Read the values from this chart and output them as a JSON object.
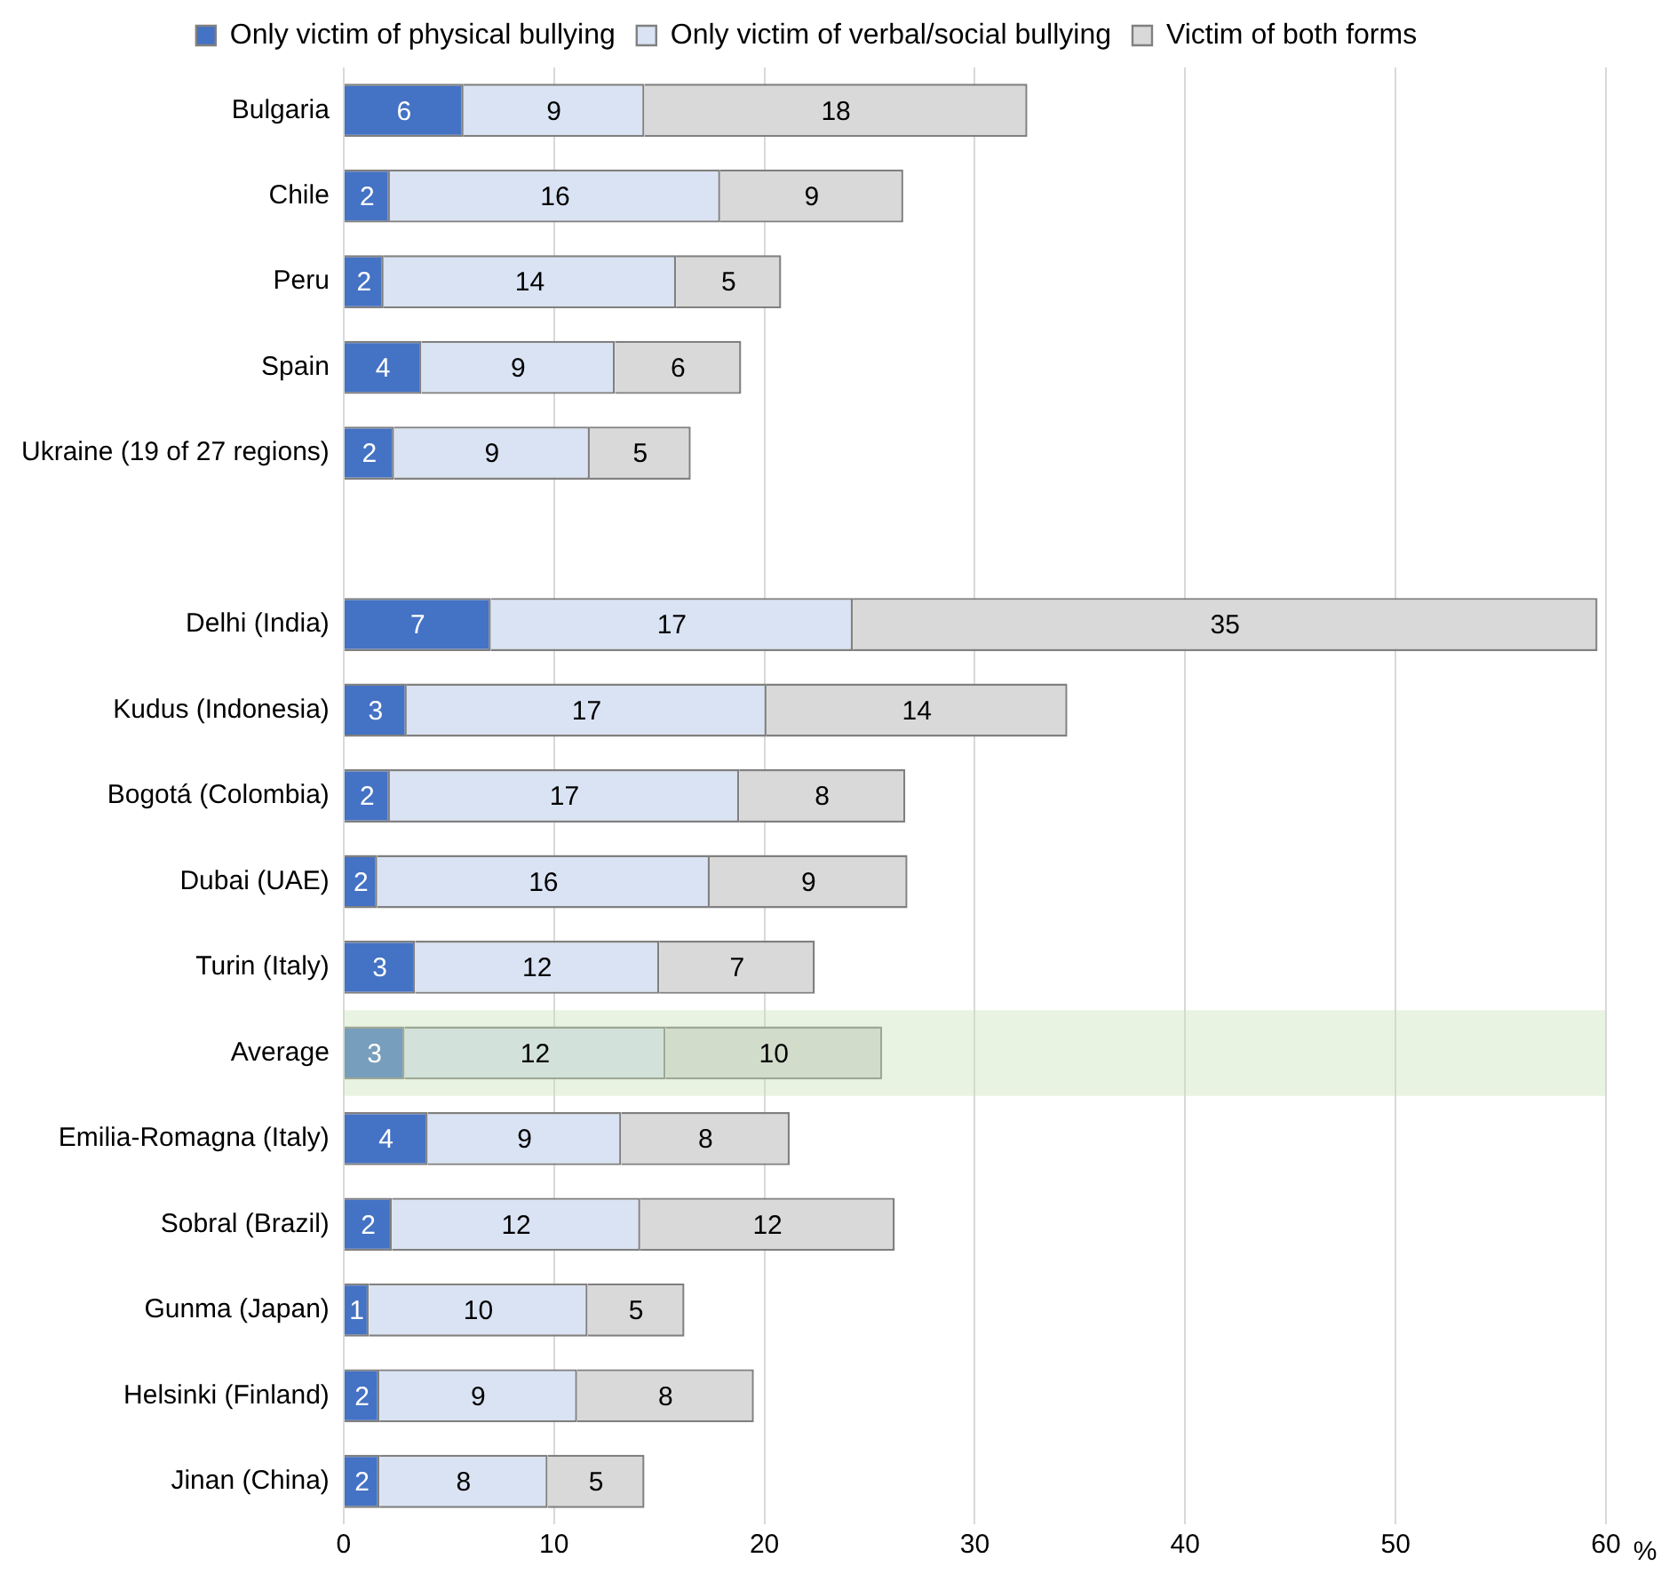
{
  "chart_data": {
    "type": "bar",
    "orientation": "horizontal",
    "stacked": true,
    "xlabel": "%",
    "categories": [
      "Bulgaria",
      "Chile",
      "Peru",
      "Spain",
      "Ukraine (19 of 27 regions)",
      null,
      "Delhi (India)",
      "Kudus (Indonesia)",
      "Bogotá (Colombia)",
      "Dubai (UAE)",
      "Turin (Italy)",
      "Average",
      "Emilia-Romagna (Italy)",
      "Sobral (Brazil)",
      "Gunma (Japan)",
      "Helsinki (Finland)",
      "Jinan (China)"
    ],
    "series": [
      {
        "name": "Only victim of physical bullying",
        "color": "#4472c4",
        "values": [
          5.7,
          2.2,
          1.9,
          3.7,
          2.4,
          null,
          7.0,
          3.0,
          2.2,
          1.6,
          3.4,
          2.9,
          4.0,
          2.3,
          1.2,
          1.7,
          1.7
        ],
        "value_labels": [
          "6",
          "2",
          "2",
          "4",
          "2",
          null,
          "7",
          "3",
          "2",
          "2",
          "3",
          "3",
          "4",
          "2",
          "1",
          "2",
          "2"
        ]
      },
      {
        "name": "Only victim of verbal/social bullying",
        "color": "#dae3f3",
        "values": [
          8.6,
          15.7,
          13.9,
          9.2,
          9.3,
          null,
          17.2,
          17.1,
          16.6,
          15.8,
          11.6,
          12.4,
          9.2,
          11.8,
          10.4,
          9.4,
          8.0
        ],
        "value_labels": [
          "9",
          "16",
          "14",
          "9",
          "9",
          null,
          "17",
          "17",
          "17",
          "16",
          "12",
          "12",
          "9",
          "12",
          "10",
          "9",
          "8"
        ]
      },
      {
        "name": "Victim of both forms",
        "color": "#d9d9d9",
        "values": [
          18.2,
          8.7,
          5.0,
          6.0,
          4.8,
          null,
          35.4,
          14.3,
          7.9,
          9.4,
          7.4,
          10.3,
          8.0,
          12.1,
          4.6,
          8.4,
          4.6
        ],
        "value_labels": [
          "18",
          "9",
          "5",
          "6",
          "5",
          null,
          "35",
          "14",
          "8",
          "9",
          "7",
          "10",
          "8",
          "12",
          "5",
          "8",
          "5"
        ]
      }
    ],
    "xlim": [
      0,
      60
    ],
    "xticks": [
      0,
      10,
      20,
      30,
      40,
      50,
      60
    ],
    "grid": "x",
    "legend": "top",
    "bands": [
      {
        "axis": "y",
        "from": "Average",
        "to": "Average",
        "color": "#c5e0b4"
      }
    ]
  }
}
